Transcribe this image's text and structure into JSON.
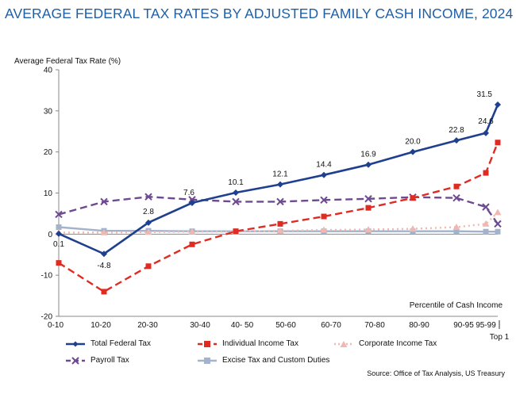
{
  "title": "AVERAGE FEDERAL TAX RATES BY ADJUSTED FAMILY CASH INCOME, 2024",
  "source": "Source: Office of Tax Analysis, US Treasury",
  "chart_data": {
    "type": "line",
    "ylabel": "Average Federal Tax Rate (%)",
    "xlabel": "Percentile of Cash Income",
    "ylim": [
      -20,
      40
    ],
    "yticks": [
      -20,
      -10,
      0,
      10,
      20,
      30,
      40
    ],
    "grid": false,
    "legend_position": "bottom",
    "categories": [
      "0-10",
      "10-20",
      "20-30",
      "30-40",
      "40- 50",
      "50-60",
      "60-70",
      "70-80",
      "80-90",
      "90-95",
      "95-99",
      "Top 1"
    ],
    "series": [
      {
        "name": "Total Federal Tax",
        "color": "#1f3f8f",
        "style": "solid",
        "marker": "diamond",
        "values": [
          0.1,
          -4.8,
          2.8,
          7.6,
          10.1,
          12.1,
          14.4,
          16.9,
          20.0,
          22.8,
          24.6,
          31.5
        ],
        "labels": [
          "0.1",
          "-4.8",
          "2.8",
          "7.6",
          "10.1",
          "12.1",
          "14.4",
          "16.9",
          "20.0",
          "22.8",
          "24.6",
          "31.5"
        ]
      },
      {
        "name": "Individual Income Tax",
        "color": "#e02b22",
        "style": "dashed",
        "marker": "square",
        "values": [
          -7.0,
          -14.0,
          -7.8,
          -2.5,
          0.7,
          2.5,
          4.3,
          6.4,
          8.8,
          11.6,
          14.9,
          22.3
        ]
      },
      {
        "name": "Corporate Income Tax",
        "color": "#f0b8b0",
        "style": "dotted",
        "marker": "triangle",
        "values": [
          0.4,
          0.4,
          0.5,
          0.6,
          0.6,
          0.8,
          1.0,
          1.1,
          1.3,
          1.7,
          2.5,
          5.3
        ]
      },
      {
        "name": "Payroll Tax",
        "color": "#6e4a91",
        "style": "dashed",
        "marker": "x",
        "values": [
          4.8,
          7.9,
          9.1,
          8.4,
          7.9,
          7.9,
          8.3,
          8.6,
          9.0,
          8.8,
          6.6,
          2.5
        ]
      },
      {
        "name": "Excise Tax and Custom Duties",
        "color": "#a3b3cc",
        "style": "solid",
        "marker": "square",
        "values": [
          1.7,
          0.8,
          0.8,
          0.7,
          0.7,
          0.7,
          0.7,
          0.7,
          0.7,
          0.7,
          0.6,
          0.6
        ]
      }
    ]
  }
}
